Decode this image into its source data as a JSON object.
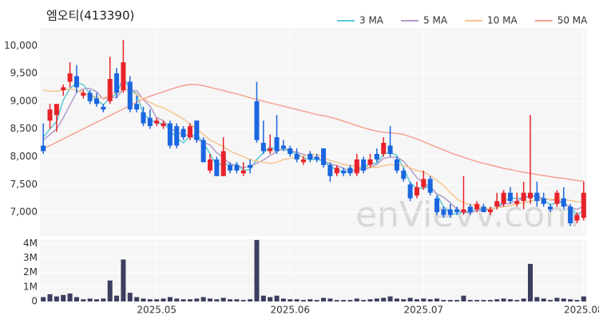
{
  "chart_data": [
    {
      "type": "candlestick",
      "title": "엠오티(413390)",
      "watermark": "enVievv.com",
      "up_color": "#e8222a",
      "down_color": "#1a66e0",
      "grid": true,
      "legend": "top-right",
      "ylim": [
        6570,
        10320
      ],
      "yticks": [
        {
          "value": 7000,
          "label": "7,000"
        },
        {
          "value": 7500,
          "label": "7,500"
        },
        {
          "value": 8000,
          "label": "8,000"
        },
        {
          "value": 8500,
          "label": "8,500"
        },
        {
          "value": 9000,
          "label": "9,000"
        },
        {
          "value": 9500,
          "label": "9,500"
        },
        {
          "value": 10000,
          "label": "10,000"
        }
      ],
      "open": [
        8200,
        8650,
        8750,
        9200,
        9350,
        9450,
        9100,
        9150,
        9050,
        8900,
        9000,
        9500,
        9200,
        9350,
        8950,
        8800,
        8700,
        8600,
        8550,
        8600,
        8550,
        8500,
        8350,
        8650,
        8300,
        7750,
        7950,
        7650,
        7850,
        7850,
        7700,
        7850,
        9000,
        8250,
        8100,
        8350,
        8200,
        8150,
        8050,
        7900,
        8050,
        8000,
        8150,
        7850,
        7700,
        7750,
        7800,
        7700,
        7950,
        7850,
        8050,
        8050,
        8200,
        7950,
        7750,
        7500,
        7300,
        7450,
        7600,
        7250,
        7050,
        7050,
        7050,
        7000,
        7100,
        7050,
        7100,
        7000,
        7100,
        7150,
        7350,
        7150,
        7200,
        7250,
        7350,
        7250,
        7100,
        7150,
        7250,
        7100,
        6850,
        6900
      ],
      "high": [
        8600,
        8950,
        8950,
        9300,
        9700,
        9650,
        9200,
        9200,
        9150,
        8950,
        9800,
        9600,
        10100,
        9450,
        9100,
        8900,
        8850,
        8700,
        8650,
        8650,
        8600,
        8550,
        8600,
        8650,
        8350,
        8050,
        8000,
        8350,
        7900,
        7900,
        7900,
        7950,
        9350,
        8650,
        8400,
        8750,
        8300,
        8200,
        8150,
        8000,
        8100,
        8050,
        8150,
        7900,
        7850,
        7800,
        7850,
        8050,
        8000,
        8050,
        8150,
        8350,
        8550,
        8000,
        7800,
        7550,
        7550,
        7750,
        7650,
        7300,
        7100,
        7150,
        7100,
        7650,
        7150,
        7200,
        7150,
        7100,
        7350,
        7400,
        7450,
        7350,
        7550,
        8750,
        7550,
        7350,
        7150,
        7400,
        7450,
        7150,
        7000,
        7550
      ],
      "low": [
        8050,
        8500,
        8450,
        9100,
        9250,
        9150,
        9050,
        8950,
        8900,
        8800,
        8950,
        9050,
        9150,
        8800,
        8800,
        8550,
        8500,
        8550,
        8500,
        8150,
        8150,
        8300,
        8300,
        8250,
        7900,
        7700,
        7650,
        7650,
        7700,
        7700,
        7650,
        7700,
        8250,
        8050,
        8050,
        8050,
        8100,
        8000,
        7900,
        7850,
        7900,
        7900,
        7800,
        7550,
        7650,
        7650,
        7650,
        7650,
        7700,
        7800,
        7900,
        8000,
        8000,
        7700,
        7550,
        7200,
        7250,
        7400,
        7300,
        6950,
        6900,
        6900,
        6950,
        6950,
        6950,
        7000,
        7000,
        6950,
        7050,
        7100,
        7150,
        7100,
        7050,
        7150,
        7100,
        7100,
        7000,
        7100,
        7050,
        6750,
        6800,
        6850
      ],
      "close": [
        8100,
        8850,
        8950,
        9250,
        9500,
        9250,
        9150,
        9000,
        8950,
        8850,
        9400,
        9150,
        9700,
        8850,
        8850,
        8600,
        8550,
        8650,
        8600,
        8200,
        8200,
        8350,
        8550,
        8300,
        7900,
        7950,
        7650,
        8100,
        7750,
        7750,
        7750,
        7800,
        8300,
        8100,
        8150,
        8100,
        8150,
        8050,
        7950,
        7950,
        7950,
        7950,
        7850,
        7650,
        7800,
        7700,
        7700,
        7950,
        7750,
        7950,
        7950,
        8250,
        8050,
        7750,
        7600,
        7250,
        7450,
        7600,
        7350,
        7000,
        6950,
        6950,
        7000,
        7050,
        7000,
        7150,
        7000,
        7050,
        7200,
        7350,
        7200,
        7200,
        7350,
        7350,
        7200,
        7150,
        7050,
        7350,
        7100,
        6800,
        6950,
        7350
      ],
      "series": [
        {
          "name": "3 MA",
          "color": "#5cc9d6",
          "values": [
            8350,
            8500,
            8630,
            9020,
            9230,
            9330,
            9300,
            9130,
            9030,
            8930,
            9070,
            9130,
            9420,
            9230,
            9130,
            8770,
            8670,
            8600,
            8600,
            8480,
            8330,
            8250,
            8370,
            8400,
            8250,
            8050,
            7830,
            7900,
            7830,
            7870,
            7750,
            7770,
            7950,
            8070,
            8180,
            8120,
            8130,
            8100,
            8050,
            7980,
            7950,
            7950,
            7920,
            7820,
            7770,
            7720,
            7730,
            7780,
            7800,
            7880,
            7880,
            8050,
            8080,
            8020,
            7800,
            7530,
            7430,
            7430,
            7470,
            7320,
            7100,
            6970,
            6970,
            7000,
            7020,
            7070,
            7050,
            7070,
            7080,
            7200,
            7250,
            7250,
            7250,
            7300,
            7300,
            7230,
            7130,
            7180,
            7170,
            7080,
            6950,
            7030
          ]
        },
        {
          "name": "5 MA",
          "color": "#b39cc9",
          "values": [
            8300,
            8400,
            8500,
            8700,
            8930,
            9160,
            9220,
            9230,
            9170,
            9040,
            9070,
            9070,
            9210,
            9190,
            9190,
            9030,
            8910,
            8700,
            8650,
            8520,
            8440,
            8400,
            8380,
            8320,
            8260,
            8210,
            8070,
            7980,
            7870,
            7840,
            7800,
            7830,
            7880,
            7940,
            8020,
            8090,
            8160,
            8110,
            8080,
            8040,
            8010,
            7970,
            7930,
            7870,
            7840,
            7790,
            7740,
            7760,
            7760,
            7810,
            7860,
            7970,
            7990,
            7990,
            7920,
            7780,
            7620,
            7530,
            7450,
            7330,
            7270,
            7170,
            7050,
            6990,
            6990,
            7030,
            7040,
            7050,
            7080,
            7150,
            7160,
            7200,
            7260,
            7290,
            7280,
            7250,
            7220,
            7220,
            7170,
            7090,
            7050,
            7110
          ]
        },
        {
          "name": "10 MA",
          "color": "#f5c58c",
          "values": [
            9200,
            9180,
            9180,
            9200,
            9220,
            9200,
            9150,
            9100,
            9080,
            9050,
            9120,
            9150,
            9220,
            9180,
            9120,
            9040,
            8980,
            8920,
            8880,
            8820,
            8750,
            8680,
            8590,
            8500,
            8400,
            8300,
            8240,
            8180,
            8100,
            8050,
            8000,
            7950,
            7920,
            7900,
            7880,
            7900,
            7950,
            7970,
            7990,
            8010,
            8040,
            8040,
            7990,
            7930,
            7900,
            7860,
            7840,
            7830,
            7810,
            7810,
            7810,
            7840,
            7860,
            7850,
            7840,
            7800,
            7750,
            7720,
            7660,
            7570,
            7480,
            7350,
            7240,
            7170,
            7130,
            7120,
            7080,
            7060,
            7080,
            7100,
            7120,
            7150,
            7170,
            7200,
            7220,
            7230,
            7230,
            7240,
            7230,
            7210,
            7190,
            7180
          ]
        },
        {
          "name": "50 MA",
          "color": "#f4a393",
          "values": [
            8150,
            8200,
            8260,
            8320,
            8380,
            8440,
            8500,
            8560,
            8620,
            8680,
            8740,
            8800,
            8860,
            8920,
            8980,
            9040,
            9090,
            9130,
            9170,
            9210,
            9250,
            9280,
            9300,
            9300,
            9280,
            9250,
            9220,
            9190,
            9160,
            9130,
            9100,
            9060,
            9030,
            9000,
            8970,
            8940,
            8910,
            8880,
            8850,
            8820,
            8790,
            8760,
            8740,
            8710,
            8680,
            8640,
            8600,
            8560,
            8520,
            8490,
            8460,
            8440,
            8430,
            8420,
            8400,
            8360,
            8320,
            8270,
            8220,
            8170,
            8120,
            8070,
            8030,
            7990,
            7950,
            7910,
            7880,
            7850,
            7820,
            7790,
            7770,
            7740,
            7720,
            7700,
            7680,
            7660,
            7640,
            7620,
            7610,
            7590,
            7570,
            7560
          ]
        }
      ]
    },
    {
      "type": "bar",
      "color": "#3b3e5e",
      "grid": true,
      "ylim": [
        0,
        4300000
      ],
      "yticks": [
        0,
        {
          "value": 1000000,
          "label": "1M"
        },
        {
          "value": 2000000,
          "label": "2M"
        },
        {
          "value": 3000000,
          "label": "3M"
        },
        {
          "value": 4000000,
          "label": "4M"
        }
      ],
      "categories": [
        null,
        null,
        null,
        null,
        null,
        null,
        null,
        null,
        null,
        null,
        null,
        null,
        null,
        null,
        null,
        null,
        null,
        "2025.05",
        null,
        null,
        null,
        null,
        null,
        null,
        null,
        null,
        null,
        null,
        null,
        null,
        null,
        null,
        null,
        null,
        null,
        null,
        null,
        "2025.06",
        null,
        null,
        null,
        null,
        null,
        null,
        null,
        null,
        null,
        null,
        null,
        null,
        null,
        null,
        null,
        null,
        null,
        null,
        null,
        "2025.07",
        null,
        null,
        null,
        null,
        null,
        null,
        null,
        null,
        null,
        null,
        null,
        null,
        null,
        null,
        null,
        null,
        null,
        null,
        null,
        null,
        null,
        null,
        null,
        "2025.08"
      ],
      "values": [
        300000,
        500000,
        350000,
        450000,
        550000,
        300000,
        150000,
        200000,
        150000,
        200000,
        1450000,
        400000,
        2900000,
        600000,
        300000,
        200000,
        150000,
        150000,
        200000,
        300000,
        200000,
        150000,
        150000,
        200000,
        300000,
        200000,
        150000,
        250000,
        150000,
        150000,
        100000,
        150000,
        4250000,
        400000,
        300000,
        400000,
        200000,
        150000,
        150000,
        100000,
        150000,
        100000,
        250000,
        200000,
        100000,
        100000,
        100000,
        200000,
        100000,
        150000,
        200000,
        250000,
        350000,
        200000,
        150000,
        250000,
        150000,
        200000,
        150000,
        200000,
        100000,
        100000,
        100000,
        400000,
        100000,
        100000,
        100000,
        100000,
        150000,
        200000,
        150000,
        100000,
        200000,
        2600000,
        300000,
        200000,
        100000,
        250000,
        200000,
        150000,
        100000,
        350000
      ]
    }
  ]
}
